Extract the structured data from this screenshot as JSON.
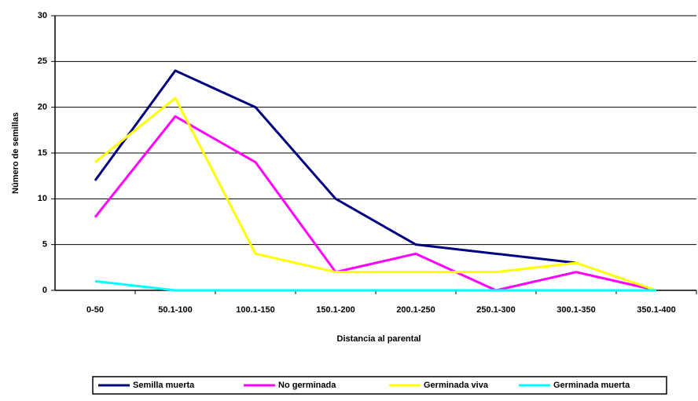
{
  "chart_data": {
    "type": "line",
    "y_label": "Número de semillas",
    "x_label": "Distancia al parental",
    "categories": [
      "0-50",
      "50.1-100",
      "100.1-150",
      "150.1-200",
      "200.1-250",
      "250.1-300",
      "300.1-350",
      "350.1-400"
    ],
    "series": [
      {
        "name": "Semilla muerta",
        "color": "#000080",
        "values": [
          12,
          24,
          20,
          10,
          5,
          4,
          3,
          null
        ]
      },
      {
        "name": "No germinada",
        "color": "#ff00ff",
        "values": [
          8,
          19,
          14,
          2,
          4,
          0,
          2,
          0
        ]
      },
      {
        "name": "Germinada viva",
        "color": "#ffff00",
        "values": [
          14,
          21,
          4,
          2,
          2,
          2,
          3,
          0
        ]
      },
      {
        "name": "Germinada muerta",
        "color": "#00ffff",
        "values": [
          1,
          0,
          0,
          0,
          0,
          0,
          0,
          0
        ]
      }
    ],
    "ylim": [
      0,
      30
    ],
    "yticks": [
      0,
      5,
      10,
      15,
      20,
      25,
      30
    ],
    "grid": true
  }
}
